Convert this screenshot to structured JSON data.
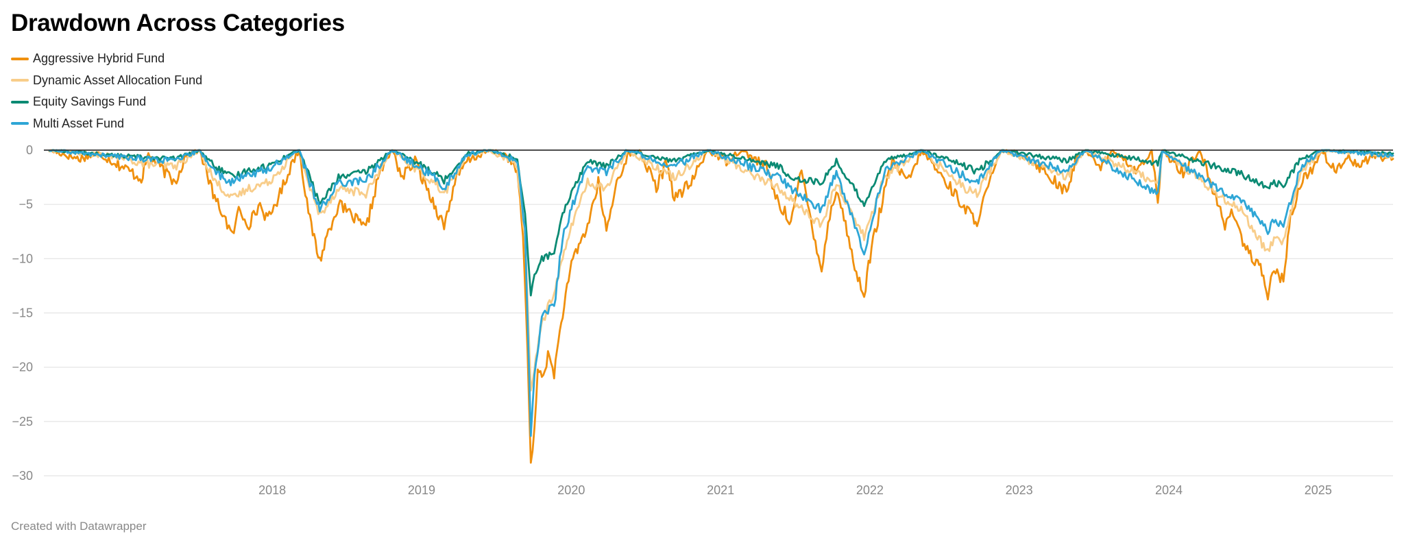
{
  "title": "Drawdown Across Categories",
  "footer": "Created with Datawrapper",
  "colors": {
    "grid": "#e3e3e3",
    "zero_line": "#333333",
    "axis_text": "#888888"
  },
  "chart_data": {
    "type": "line",
    "title": "Drawdown Across Categories",
    "xlabel": "",
    "ylabel": "",
    "x_range": [
      "2017-01-02",
      "2025-12-31"
    ],
    "x_ticks": [
      "2018",
      "2019",
      "2020",
      "2021",
      "2022",
      "2023",
      "2024",
      "2025"
    ],
    "y_ticks": [
      0,
      -5,
      -10,
      -15,
      -20,
      -25,
      -30
    ],
    "y_tick_labels": [
      "0",
      "−5",
      "−10",
      "−15",
      "−20",
      "−25",
      "−30"
    ],
    "ylim": [
      -30,
      0
    ],
    "grid": true,
    "legend_position": "top-left",
    "series": [
      {
        "name": "Aggressive Hybrid Fund",
        "color": "#f0900e",
        "data": [
          [
            "2017-01-02",
            0
          ],
          [
            "2017-03-15",
            -0.8
          ],
          [
            "2017-05-01",
            -0.3
          ],
          [
            "2017-06-15",
            -1.2
          ],
          [
            "2017-08-15",
            -2.6
          ],
          [
            "2017-09-01",
            -0.4
          ],
          [
            "2017-11-05",
            -3.0
          ],
          [
            "2017-12-01",
            -0.5
          ],
          [
            "2018-01-05",
            0
          ],
          [
            "2018-02-10",
            -4.5
          ],
          [
            "2018-03-05",
            -6.0
          ],
          [
            "2018-03-25",
            -8.0
          ],
          [
            "2018-04-10",
            -5.5
          ],
          [
            "2018-05-05",
            -6.8
          ],
          [
            "2018-06-01",
            -5.0
          ],
          [
            "2018-06-20",
            -6.5
          ],
          [
            "2018-07-20",
            -4.0
          ],
          [
            "2018-08-20",
            -1.0
          ],
          [
            "2018-09-05",
            0
          ],
          [
            "2018-10-01",
            -6.5
          ],
          [
            "2018-10-25",
            -10.2
          ],
          [
            "2018-11-15",
            -7.5
          ],
          [
            "2018-12-10",
            -5.0
          ],
          [
            "2019-01-10",
            -6.0
          ],
          [
            "2019-02-15",
            -7.3
          ],
          [
            "2019-03-20",
            -2.0
          ],
          [
            "2019-04-20",
            0
          ],
          [
            "2019-05-15",
            -2.5
          ],
          [
            "2019-06-15",
            -1.0
          ],
          [
            "2019-08-01",
            -5.0
          ],
          [
            "2019-08-25",
            -7.0
          ],
          [
            "2019-09-20",
            -3.0
          ],
          [
            "2019-10-20",
            -1.0
          ],
          [
            "2019-12-15",
            0
          ],
          [
            "2020-01-25",
            -0.5
          ],
          [
            "2020-02-20",
            -2.0
          ],
          [
            "2020-03-05",
            -8.0
          ],
          [
            "2020-03-16",
            -18.0
          ],
          [
            "2020-03-24",
            -29.3
          ],
          [
            "2020-04-02",
            -26.0
          ],
          [
            "2020-04-10",
            -20.0
          ],
          [
            "2020-04-20",
            -21.0
          ],
          [
            "2020-05-05",
            -19.0
          ],
          [
            "2020-05-20",
            -20.5
          ],
          [
            "2020-06-10",
            -15.0
          ],
          [
            "2020-07-05",
            -10.0
          ],
          [
            "2020-08-10",
            -7.0
          ],
          [
            "2020-09-05",
            -3.0
          ],
          [
            "2020-09-25",
            -7.5
          ],
          [
            "2020-10-20",
            -3.0
          ],
          [
            "2020-11-15",
            -0.5
          ],
          [
            "2020-12-15",
            0
          ],
          [
            "2021-01-25",
            -3.5
          ],
          [
            "2021-02-20",
            -1.0
          ],
          [
            "2021-03-10",
            -4.5
          ],
          [
            "2021-04-20",
            -3.0
          ],
          [
            "2021-05-30",
            0
          ],
          [
            "2021-07-15",
            -1.0
          ],
          [
            "2021-08-20",
            0
          ],
          [
            "2021-10-20",
            -1.5
          ],
          [
            "2021-11-20",
            -5.0
          ],
          [
            "2021-12-20",
            -6.5
          ],
          [
            "2022-01-15",
            -2.0
          ],
          [
            "2022-02-10",
            -7.0
          ],
          [
            "2022-03-05",
            -11.0
          ],
          [
            "2022-03-25",
            -6.0
          ],
          [
            "2022-04-10",
            -3.5
          ],
          [
            "2022-05-10",
            -8.0
          ],
          [
            "2022-05-25",
            -11.0
          ],
          [
            "2022-06-17",
            -13.3
          ],
          [
            "2022-07-05",
            -9.0
          ],
          [
            "2022-08-05",
            -4.0
          ],
          [
            "2022-08-25",
            -1.0
          ],
          [
            "2022-10-01",
            -3.0
          ],
          [
            "2022-11-05",
            0
          ],
          [
            "2022-12-25",
            -2.5
          ],
          [
            "2023-01-25",
            -4.0
          ],
          [
            "2023-02-20",
            -5.5
          ],
          [
            "2023-03-20",
            -6.5
          ],
          [
            "2023-04-20",
            -3.0
          ],
          [
            "2023-05-20",
            0
          ],
          [
            "2023-07-15",
            -0.5
          ],
          [
            "2023-08-20",
            -1.5
          ],
          [
            "2023-09-30",
            -3.0
          ],
          [
            "2023-10-25",
            -4.0
          ],
          [
            "2023-11-15",
            -1.0
          ],
          [
            "2023-12-10",
            0
          ],
          [
            "2024-01-20",
            -1.5
          ],
          [
            "2024-02-15",
            0
          ],
          [
            "2024-04-15",
            -2.0
          ],
          [
            "2024-05-20",
            0
          ],
          [
            "2024-06-04",
            -5.0
          ],
          [
            "2024-06-15",
            0
          ],
          [
            "2024-08-05",
            -2.0
          ],
          [
            "2024-09-15",
            0
          ],
          [
            "2024-10-20",
            -4.0
          ],
          [
            "2024-11-15",
            -7.0
          ],
          [
            "2024-12-05",
            -5.5
          ],
          [
            "2024-12-25",
            -8.0
          ],
          [
            "2025-01-20",
            -10.0
          ],
          [
            "2025-02-10",
            -11.0
          ],
          [
            "2025-02-28",
            -13.3
          ],
          [
            "2025-03-15",
            -11.0
          ],
          [
            "2025-04-07",
            -12.0
          ],
          [
            "2025-04-25",
            -6.0
          ],
          [
            "2025-05-20",
            -3.0
          ],
          [
            "2025-06-20",
            -1.5
          ],
          [
            "2025-07-10",
            0
          ],
          [
            "2025-08-10",
            -2.0
          ],
          [
            "2025-09-10",
            -0.5
          ],
          [
            "2025-10-10",
            -1.5
          ],
          [
            "2025-11-10",
            -0.5
          ],
          [
            "2025-12-31",
            -0.8
          ]
        ]
      },
      {
        "name": "Dynamic Asset Allocation Fund",
        "color": "#f8cd8a",
        "data": [
          [
            "2017-01-02",
            0
          ],
          [
            "2017-06-15",
            -0.6
          ],
          [
            "2017-08-15",
            -1.2
          ],
          [
            "2017-11-05",
            -1.5
          ],
          [
            "2018-01-05",
            0
          ],
          [
            "2018-02-10",
            -2.8
          ],
          [
            "2018-03-25",
            -4.5
          ],
          [
            "2018-05-05",
            -3.5
          ],
          [
            "2018-06-20",
            -3.0
          ],
          [
            "2018-08-20",
            -0.5
          ],
          [
            "2018-09-05",
            0
          ],
          [
            "2018-10-01",
            -3.5
          ],
          [
            "2018-10-25",
            -6.0
          ],
          [
            "2018-12-10",
            -3.5
          ],
          [
            "2019-02-15",
            -4.0
          ],
          [
            "2019-04-20",
            0
          ],
          [
            "2019-08-01",
            -3.0
          ],
          [
            "2019-08-25",
            -4.0
          ],
          [
            "2019-10-20",
            -0.5
          ],
          [
            "2019-12-15",
            0
          ],
          [
            "2020-02-20",
            -1.5
          ],
          [
            "2020-03-10",
            -8.0
          ],
          [
            "2020-03-24",
            -22.0
          ],
          [
            "2020-04-02",
            -20.0
          ],
          [
            "2020-04-20",
            -16.0
          ],
          [
            "2020-05-20",
            -13.0
          ],
          [
            "2020-06-10",
            -10.0
          ],
          [
            "2020-07-05",
            -6.5
          ],
          [
            "2020-08-10",
            -3.0
          ],
          [
            "2020-09-25",
            -3.5
          ],
          [
            "2020-11-15",
            0
          ],
          [
            "2021-03-10",
            -2.5
          ],
          [
            "2021-05-30",
            0
          ],
          [
            "2021-11-20",
            -3.5
          ],
          [
            "2021-12-20",
            -4.5
          ],
          [
            "2022-03-05",
            -7.0
          ],
          [
            "2022-04-10",
            -3.0
          ],
          [
            "2022-06-17",
            -8.0
          ],
          [
            "2022-08-05",
            -2.5
          ],
          [
            "2022-11-05",
            0
          ],
          [
            "2023-02-20",
            -3.5
          ],
          [
            "2023-03-20",
            -4.0
          ],
          [
            "2023-05-20",
            0
          ],
          [
            "2023-10-25",
            -2.5
          ],
          [
            "2023-12-10",
            0
          ],
          [
            "2024-06-04",
            -3.0
          ],
          [
            "2024-06-15",
            0
          ],
          [
            "2024-11-15",
            -4.5
          ],
          [
            "2024-12-25",
            -5.5
          ],
          [
            "2025-02-28",
            -9.5
          ],
          [
            "2025-03-15",
            -8.0
          ],
          [
            "2025-04-07",
            -8.5
          ],
          [
            "2025-05-20",
            -2.0
          ],
          [
            "2025-07-10",
            0
          ],
          [
            "2025-12-31",
            -0.5
          ]
        ]
      },
      {
        "name": "Equity Savings Fund",
        "color": "#0b8a73",
        "data": [
          [
            "2017-01-02",
            0
          ],
          [
            "2017-06-15",
            -0.5
          ],
          [
            "2017-11-05",
            -0.8
          ],
          [
            "2018-01-05",
            0
          ],
          [
            "2018-02-10",
            -1.5
          ],
          [
            "2018-03-25",
            -2.5
          ],
          [
            "2018-05-05",
            -1.8
          ],
          [
            "2018-06-20",
            -1.5
          ],
          [
            "2018-08-20",
            -0.2
          ],
          [
            "2018-09-05",
            0
          ],
          [
            "2018-10-01",
            -2.5
          ],
          [
            "2018-10-25",
            -5.0
          ],
          [
            "2018-12-10",
            -2.5
          ],
          [
            "2019-02-15",
            -2.0
          ],
          [
            "2019-04-20",
            0
          ],
          [
            "2019-08-01",
            -2.0
          ],
          [
            "2019-08-25",
            -2.8
          ],
          [
            "2019-10-20",
            -0.3
          ],
          [
            "2019-12-15",
            0
          ],
          [
            "2020-02-20",
            -0.8
          ],
          [
            "2020-03-10",
            -6.0
          ],
          [
            "2020-03-24",
            -13.5
          ],
          [
            "2020-04-02",
            -11.5
          ],
          [
            "2020-04-20",
            -10.0
          ],
          [
            "2020-05-20",
            -9.5
          ],
          [
            "2020-06-10",
            -6.0
          ],
          [
            "2020-07-05",
            -3.5
          ],
          [
            "2020-08-10",
            -1.0
          ],
          [
            "2020-09-25",
            -1.5
          ],
          [
            "2020-11-15",
            0
          ],
          [
            "2021-03-10",
            -1.0
          ],
          [
            "2021-05-30",
            0
          ],
          [
            "2021-11-20",
            -1.5
          ],
          [
            "2021-12-20",
            -2.5
          ],
          [
            "2022-03-05",
            -3.0
          ],
          [
            "2022-04-10",
            -1.0
          ],
          [
            "2022-06-17",
            -5.0
          ],
          [
            "2022-08-05",
            -1.0
          ],
          [
            "2022-11-05",
            0
          ],
          [
            "2023-02-20",
            -1.5
          ],
          [
            "2023-03-20",
            -2.0
          ],
          [
            "2023-05-20",
            0
          ],
          [
            "2023-10-25",
            -1.0
          ],
          [
            "2023-12-10",
            0
          ],
          [
            "2024-06-04",
            -1.2
          ],
          [
            "2024-06-15",
            0
          ],
          [
            "2024-11-15",
            -1.8
          ],
          [
            "2024-12-25",
            -2.2
          ],
          [
            "2025-02-28",
            -3.5
          ],
          [
            "2025-03-15",
            -3.0
          ],
          [
            "2025-04-07",
            -3.2
          ],
          [
            "2025-05-20",
            -0.8
          ],
          [
            "2025-07-10",
            0
          ],
          [
            "2025-12-31",
            -0.3
          ]
        ]
      },
      {
        "name": "Multi Asset Fund",
        "color": "#2ea6d6",
        "data": [
          [
            "2017-01-02",
            0
          ],
          [
            "2017-06-15",
            -0.6
          ],
          [
            "2017-11-05",
            -1.0
          ],
          [
            "2018-01-05",
            0
          ],
          [
            "2018-02-10",
            -2.0
          ],
          [
            "2018-03-25",
            -3.0
          ],
          [
            "2018-05-05",
            -2.2
          ],
          [
            "2018-06-20",
            -1.8
          ],
          [
            "2018-08-20",
            -0.3
          ],
          [
            "2018-09-05",
            0
          ],
          [
            "2018-10-01",
            -3.0
          ],
          [
            "2018-10-25",
            -5.5
          ],
          [
            "2018-12-10",
            -3.0
          ],
          [
            "2019-02-15",
            -2.8
          ],
          [
            "2019-04-20",
            0
          ],
          [
            "2019-08-01",
            -2.5
          ],
          [
            "2019-08-25",
            -3.5
          ],
          [
            "2019-10-20",
            -0.4
          ],
          [
            "2019-12-15",
            0
          ],
          [
            "2020-02-20",
            -1.0
          ],
          [
            "2020-03-10",
            -7.5
          ],
          [
            "2020-03-24",
            -26.0
          ],
          [
            "2020-04-02",
            -21.0
          ],
          [
            "2020-04-20",
            -15.0
          ],
          [
            "2020-05-20",
            -14.5
          ],
          [
            "2020-06-10",
            -8.0
          ],
          [
            "2020-07-05",
            -5.0
          ],
          [
            "2020-08-10",
            -1.5
          ],
          [
            "2020-09-25",
            -2.0
          ],
          [
            "2020-11-15",
            0
          ],
          [
            "2021-03-10",
            -1.5
          ],
          [
            "2021-05-30",
            0
          ],
          [
            "2021-11-20",
            -2.5
          ],
          [
            "2021-12-20",
            -3.5
          ],
          [
            "2022-03-05",
            -5.5
          ],
          [
            "2022-04-10",
            -2.0
          ],
          [
            "2022-06-17",
            -9.5
          ],
          [
            "2022-08-05",
            -2.0
          ],
          [
            "2022-11-05",
            0
          ],
          [
            "2023-02-20",
            -2.5
          ],
          [
            "2023-03-20",
            -3.0
          ],
          [
            "2023-05-20",
            0
          ],
          [
            "2023-10-25",
            -2.0
          ],
          [
            "2023-12-10",
            0
          ],
          [
            "2024-06-04",
            -4.0
          ],
          [
            "2024-06-15",
            0
          ],
          [
            "2024-11-15",
            -4.0
          ],
          [
            "2024-12-25",
            -4.5
          ],
          [
            "2025-02-28",
            -7.5
          ],
          [
            "2025-03-15",
            -6.5
          ],
          [
            "2025-04-07",
            -7.0
          ],
          [
            "2025-05-20",
            -1.5
          ],
          [
            "2025-07-10",
            0
          ],
          [
            "2025-12-31",
            -0.5
          ]
        ]
      }
    ]
  }
}
